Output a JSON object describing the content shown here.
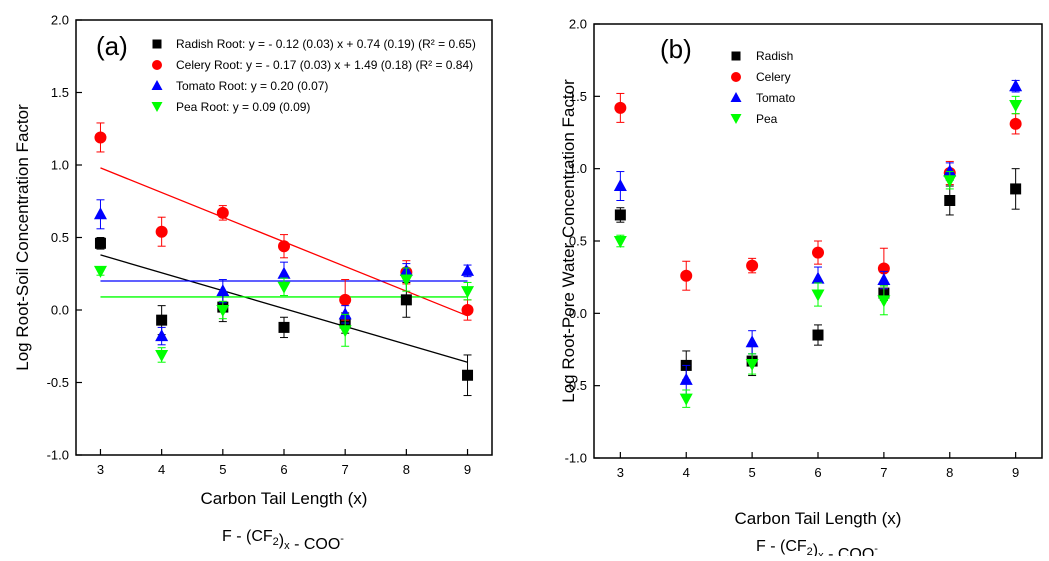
{
  "chart_data": [
    {
      "type": "scatter",
      "panel_label": "(a)",
      "xlabel": "Carbon Tail Length (x)",
      "ylabel": "Log Root-Soil Concentration Factor",
      "xlim": [
        2.6,
        9.4
      ],
      "ylim": [
        -1.0,
        2.0
      ],
      "x_ticks": [
        "3",
        "4",
        "5",
        "6",
        "7",
        "8",
        "9"
      ],
      "y_ticks": [
        "-1.0",
        "-0.5",
        "0.0",
        "0.5",
        "1.0",
        "1.5",
        "2.0"
      ],
      "formula": {
        "prefix": "F - (CF",
        "sub1": "2",
        "mid": ")",
        "sub2": "x",
        "suffix": " - COO",
        "sup": "-"
      },
      "legend_position": "top",
      "series": [
        {
          "name": "Radish Root: y = - 0.12 (0.03) x + 0.74 (0.19) (R² = 0.65)",
          "marker": "square",
          "color": "#000000",
          "x": [
            3,
            4,
            5,
            6,
            7,
            8,
            9
          ],
          "y": [
            0.46,
            -0.07,
            0.02,
            -0.12,
            -0.09,
            0.07,
            -0.45
          ],
          "err": [
            0.04,
            0.1,
            0.1,
            0.07,
            0.07,
            0.12,
            0.14
          ],
          "fit": {
            "x1": 3,
            "y1": 0.38,
            "x2": 9,
            "y2": -0.36
          }
        },
        {
          "name": "Celery Root: y = - 0.17 (0.03) x + 1.49 (0.18) (R² = 0.84)",
          "marker": "circle",
          "color": "#ff0000",
          "x": [
            3,
            4,
            5,
            6,
            7,
            8,
            9
          ],
          "y": [
            1.19,
            0.54,
            0.67,
            0.44,
            0.07,
            0.26,
            0.0
          ],
          "err": [
            0.1,
            0.1,
            0.05,
            0.08,
            0.14,
            0.08,
            0.07
          ],
          "fit": {
            "x1": 3,
            "y1": 0.98,
            "x2": 9,
            "y2": -0.04
          }
        },
        {
          "name": "Tomato Root: y = 0.20 (0.07)",
          "marker": "triangle-up",
          "color": "#0000ff",
          "x": [
            3,
            4,
            5,
            6,
            7,
            8,
            9
          ],
          "y": [
            0.66,
            -0.18,
            0.13,
            0.25,
            -0.03,
            0.27,
            0.27
          ],
          "err": [
            0.1,
            0.06,
            0.08,
            0.08,
            0.06,
            0.05,
            0.04
          ],
          "fit": {
            "x1": 3,
            "y1": 0.2,
            "x2": 9,
            "y2": 0.2
          }
        },
        {
          "name": "Pea Root: y = 0.09 (0.09)",
          "marker": "triangle-down",
          "color": "#00ff00",
          "x": [
            3,
            4,
            5,
            6,
            7,
            8,
            9
          ],
          "y": [
            0.27,
            -0.31,
            0.0,
            0.16,
            -0.14,
            0.21,
            0.13
          ],
          "err": [
            0.03,
            0.05,
            0.06,
            0.06,
            0.11,
            0.08,
            0.06
          ],
          "fit": {
            "x1": 3,
            "y1": 0.09,
            "x2": 9,
            "y2": 0.09
          }
        }
      ]
    },
    {
      "type": "scatter",
      "panel_label": "(b)",
      "xlabel": "Carbon Tail Length (x)",
      "ylabel": "Log Root-Pore Water Concentration Factor",
      "xlim": [
        2.6,
        9.4
      ],
      "ylim": [
        -1.0,
        2.0
      ],
      "x_ticks": [
        "3",
        "4",
        "5",
        "6",
        "7",
        "8",
        "9"
      ],
      "y_ticks": [
        "-1.0",
        "-0.5",
        "0.0",
        "0.5",
        "1.0",
        "1.5",
        "2.0"
      ],
      "formula": {
        "prefix": "F - (CF",
        "sub1": "2",
        "mid": ")",
        "sub2": "x",
        "suffix": " - COO",
        "sup": "-"
      },
      "legend_position": "top",
      "series": [
        {
          "name": "Radish",
          "marker": "square",
          "color": "#000000",
          "x": [
            3,
            4,
            5,
            6,
            7,
            8,
            9
          ],
          "y": [
            0.68,
            -0.36,
            -0.33,
            -0.15,
            0.14,
            0.78,
            0.86
          ],
          "err": [
            0.05,
            0.1,
            0.1,
            0.07,
            0.05,
            0.1,
            0.14
          ]
        },
        {
          "name": "Celery",
          "marker": "circle",
          "color": "#ff0000",
          "x": [
            3,
            4,
            5,
            6,
            7,
            8,
            9
          ],
          "y": [
            1.42,
            0.26,
            0.33,
            0.42,
            0.31,
            0.97,
            1.31
          ],
          "err": [
            0.1,
            0.1,
            0.05,
            0.08,
            0.14,
            0.08,
            0.07
          ]
        },
        {
          "name": "Tomato",
          "marker": "triangle-up",
          "color": "#0000ff",
          "x": [
            3,
            4,
            5,
            6,
            7,
            8,
            9
          ],
          "y": [
            0.88,
            -0.46,
            -0.2,
            0.24,
            0.23,
            0.98,
            1.57
          ],
          "err": [
            0.1,
            0.1,
            0.08,
            0.08,
            0.06,
            0.06,
            0.04
          ]
        },
        {
          "name": "Pea",
          "marker": "triangle-down",
          "color": "#00ff00",
          "x": [
            3,
            4,
            5,
            6,
            7,
            8,
            9
          ],
          "y": [
            0.5,
            -0.59,
            -0.35,
            0.13,
            0.09,
            0.92,
            1.44
          ],
          "err": [
            0.04,
            0.06,
            0.07,
            0.08,
            0.1,
            0.06,
            0.06
          ]
        }
      ]
    }
  ]
}
